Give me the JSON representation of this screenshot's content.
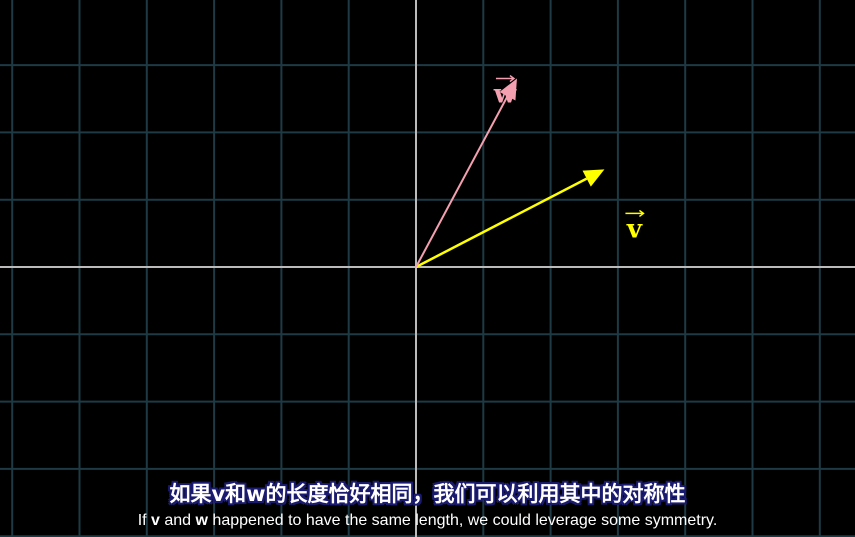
{
  "scene": {
    "grid_unit_range_x": [
      -6.2,
      6.5
    ],
    "grid_unit_range_y": [
      -4,
      4
    ],
    "colors": {
      "background": "#000000",
      "grid": "#1d3a45",
      "axis": "#bbbbbb",
      "v": "#ffff00",
      "w": "#f4a0b0"
    }
  },
  "vectors": [
    {
      "name": "v",
      "label": "v",
      "coords": [
        2.8,
        1.45
      ],
      "color": "#ffff00"
    },
    {
      "name": "w",
      "label": "w",
      "coords": [
        1.5,
        2.8
      ],
      "color": "#f4a0b0"
    }
  ],
  "subtitles": {
    "chinese": "如果v和w的长度恰好相同，我们可以利用其中的对称性",
    "english_parts": [
      "If ",
      "v",
      " and ",
      "w",
      " happened to have the same length, we could leverage some symmetry."
    ]
  }
}
